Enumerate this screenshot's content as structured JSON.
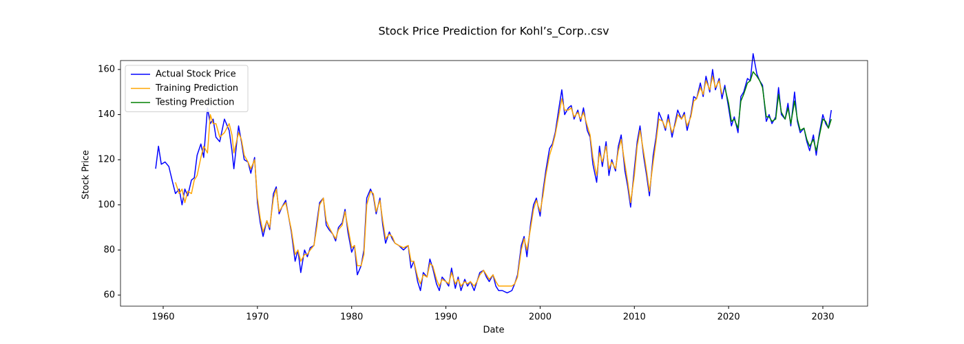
{
  "chart_data": {
    "type": "line",
    "title": "Stock Price Prediction for Kohl’s_Corp..csv",
    "x_label": "Date",
    "y_label": "Stock Price",
    "xlim": [
      1955.47,
      2034.75
    ],
    "xticks": [
      1960,
      1970,
      1980,
      1990,
      2000,
      2010,
      2020,
      2030
    ],
    "ylim": [
      55.1,
      163.96
    ],
    "yticks": [
      60,
      80,
      100,
      120,
      140,
      160
    ],
    "legend": "upper left",
    "series": [
      {
        "name": "Actual Stock Price",
        "color": "#0000ff",
        "x": [
          1959.2,
          1959.5,
          1959.8,
          1960.2,
          1960.6,
          1961,
          1961.3,
          1961.7,
          1962,
          1962.3,
          1962.6,
          1963,
          1963.3,
          1963.6,
          1964,
          1964.3,
          1964.7,
          1965,
          1965.3,
          1965.6,
          1966,
          1966.5,
          1967,
          1967.3,
          1967.5,
          1968,
          1968.3,
          1968.6,
          1969,
          1969.3,
          1969.7,
          1970,
          1970.3,
          1970.6,
          1971,
          1971.3,
          1971.7,
          1972,
          1972.3,
          1972.6,
          1973,
          1973.3,
          1973.6,
          1974,
          1974.3,
          1974.6,
          1975,
          1975.3,
          1975.6,
          1976,
          1976.3,
          1976.6,
          1977,
          1977.3,
          1977.6,
          1978,
          1978.3,
          1978.6,
          1979,
          1979.3,
          1979.6,
          1980,
          1980.3,
          1980.6,
          1981,
          1981.3,
          1981.6,
          1982,
          1982.3,
          1982.6,
          1983,
          1983.3,
          1983.6,
          1984,
          1984.3,
          1984.6,
          1985,
          1985.5,
          1986,
          1986.3,
          1986.6,
          1987,
          1987.3,
          1987.6,
          1988,
          1988.3,
          1988.6,
          1989,
          1989.3,
          1989.6,
          1990,
          1990.3,
          1990.6,
          1991,
          1991.3,
          1991.6,
          1992,
          1992.3,
          1992.6,
          1993,
          1993.3,
          1993.6,
          1994,
          1994.3,
          1994.6,
          1995,
          1995.3,
          1995.6,
          1996,
          1996.5,
          1997,
          1997.3,
          1997.6,
          1998,
          1998.3,
          1998.6,
          1999,
          1999.3,
          1999.6,
          2000,
          2000.3,
          2000.6,
          2001,
          2001.3,
          2001.6,
          2002,
          2002.3,
          2002.6,
          2003,
          2003.3,
          2003.6,
          2004,
          2004.3,
          2004.6,
          2005,
          2005.3,
          2005.6,
          2006,
          2006.3,
          2006.6,
          2007,
          2007.3,
          2007.6,
          2008,
          2008.3,
          2008.6,
          2009,
          2009.3,
          2009.6,
          2010,
          2010.3,
          2010.6,
          2011,
          2011.3,
          2011.6,
          2012,
          2012.3,
          2012.6,
          2013,
          2013.3,
          2013.6,
          2014,
          2014.3,
          2014.6,
          2015,
          2015.3,
          2015.6,
          2016,
          2016.3,
          2016.6,
          2017,
          2017.3,
          2017.6,
          2018,
          2018.3,
          2018.6,
          2019,
          2019.3,
          2019.6,
          2020,
          2020.3,
          2020.6,
          2021,
          2021.3,
          2021.6,
          2022,
          2022.3,
          2022.6,
          2023,
          2023.3,
          2023.6,
          2024,
          2024.3,
          2024.6,
          2025,
          2025.3,
          2025.6,
          2026,
          2026.3,
          2026.6,
          2027,
          2027.3,
          2027.6,
          2028,
          2028.3,
          2028.6,
          2029,
          2029.3,
          2029.6,
          2030,
          2030.3,
          2030.6,
          2030.9
        ],
        "values": [
          116,
          126,
          118,
          119,
          117,
          110,
          105,
          107,
          100,
          107,
          104,
          111,
          112,
          122,
          127,
          121,
          143,
          136,
          138,
          130,
          128,
          138,
          133,
          124,
          116,
          135,
          128,
          120,
          119,
          114,
          121,
          101,
          92,
          86,
          93,
          89,
          105,
          108,
          96,
          99,
          102,
          95,
          88,
          75,
          80,
          70,
          80,
          77,
          81,
          82,
          92,
          101,
          103,
          91,
          89,
          87,
          84,
          90,
          92,
          98,
          88,
          79,
          82,
          69,
          73,
          80,
          103,
          107,
          104,
          96,
          103,
          91,
          83,
          88,
          85,
          83,
          82,
          80,
          82,
          72,
          75,
          66,
          62,
          70,
          68,
          76,
          72,
          65,
          62,
          68,
          66,
          64,
          72,
          63,
          68,
          62,
          67,
          64,
          66,
          62,
          66,
          70,
          71,
          68,
          66,
          69,
          64,
          62,
          62,
          61,
          62,
          65,
          69,
          82,
          86,
          77,
          92,
          100,
          103,
          95,
          106,
          115,
          125,
          127,
          132,
          143,
          151,
          140,
          143,
          144,
          138,
          142,
          137,
          143,
          133,
          130,
          118,
          110,
          126,
          117,
          128,
          113,
          120,
          115,
          126,
          131,
          115,
          108,
          99,
          116,
          128,
          135,
          121,
          113,
          104,
          122,
          130,
          141,
          137,
          133,
          140,
          130,
          136,
          142,
          138,
          141,
          133,
          140,
          148,
          147,
          154,
          148,
          157,
          150,
          160,
          151,
          156,
          147,
          153,
          143,
          135,
          139,
          132,
          148,
          150,
          156,
          155,
          167,
          158,
          155,
          153,
          137,
          140,
          136,
          139,
          152,
          140,
          138,
          145,
          135,
          150,
          137,
          132,
          134,
          128,
          124,
          131,
          122,
          131,
          140,
          136,
          134,
          142
        ]
      },
      {
        "name": "Training Prediction",
        "color": "#ffa500",
        "x": [
          1961.3,
          1961.7,
          1962,
          1962.3,
          1962.6,
          1963,
          1963.3,
          1963.6,
          1964,
          1964.3,
          1964.7,
          1965,
          1965.3,
          1965.6,
          1966,
          1966.5,
          1967,
          1967.3,
          1967.5,
          1968,
          1968.3,
          1968.6,
          1969,
          1969.3,
          1969.7,
          1970,
          1970.3,
          1970.6,
          1971,
          1971.3,
          1971.7,
          1972,
          1972.3,
          1972.6,
          1973,
          1973.3,
          1973.6,
          1974,
          1974.3,
          1974.6,
          1975,
          1975.3,
          1975.6,
          1976,
          1976.3,
          1976.6,
          1977,
          1977.3,
          1977.6,
          1978,
          1978.3,
          1978.6,
          1979,
          1979.3,
          1979.6,
          1980,
          1980.3,
          1980.6,
          1981,
          1981.3,
          1981.6,
          1982,
          1982.3,
          1982.6,
          1983,
          1983.3,
          1983.6,
          1984,
          1984.3,
          1984.6,
          1985,
          1985.5,
          1986,
          1986.3,
          1986.6,
          1987,
          1987.3,
          1987.6,
          1988,
          1988.3,
          1988.6,
          1989,
          1989.3,
          1989.6,
          1990,
          1990.3,
          1990.6,
          1991,
          1991.3,
          1991.6,
          1992,
          1992.3,
          1992.6,
          1993,
          1993.3,
          1993.6,
          1994,
          1994.3,
          1994.6,
          1995,
          1995.3,
          1995.6,
          1996,
          1996.5,
          1997,
          1997.3,
          1997.6,
          1998,
          1998.3,
          1998.6,
          1999,
          1999.3,
          1999.6,
          2000,
          2000.3,
          2000.6,
          2001,
          2001.3,
          2001.6,
          2002,
          2002.3,
          2002.6,
          2003,
          2003.3,
          2003.6,
          2004,
          2004.3,
          2004.6,
          2005,
          2005.3,
          2005.6,
          2006,
          2006.3,
          2006.6,
          2007,
          2007.3,
          2007.6,
          2008,
          2008.3,
          2008.6,
          2009,
          2009.3,
          2009.6,
          2010,
          2010.3,
          2010.6,
          2011,
          2011.3,
          2011.6,
          2012,
          2012.3,
          2012.6,
          2013,
          2013.3,
          2013.6,
          2014,
          2014.3,
          2014.6,
          2015,
          2015.3,
          2015.6,
          2016,
          2016.3,
          2016.6,
          2017,
          2017.3,
          2017.6,
          2018,
          2018.3,
          2018.6,
          2019,
          2019.3
        ],
        "values": [
          110,
          105,
          107,
          101,
          106,
          105,
          111,
          113,
          121,
          126,
          123,
          140,
          136,
          136,
          130,
          132,
          136,
          131,
          123,
          132,
          129,
          122,
          119,
          116,
          120,
          103,
          94,
          88,
          93,
          90,
          103,
          107,
          97,
          99,
          101,
          95,
          89,
          78,
          80,
          75,
          78,
          78,
          80,
          82,
          90,
          100,
          103,
          93,
          90,
          87,
          85,
          89,
          91,
          97,
          90,
          81,
          82,
          73,
          73,
          78,
          100,
          106,
          105,
          97,
          102,
          93,
          85,
          87,
          86,
          83,
          82,
          81,
          82,
          75,
          75,
          68,
          65,
          69,
          68,
          74,
          73,
          67,
          64,
          67,
          66,
          65,
          70,
          65,
          67,
          64,
          66,
          65,
          66,
          64,
          66,
          69,
          71,
          69,
          67,
          69,
          66,
          64,
          64,
          64,
          64,
          65,
          68,
          80,
          85,
          80,
          90,
          98,
          102,
          97,
          104,
          113,
          122,
          126,
          131,
          140,
          147,
          142,
          142,
          143,
          139,
          141,
          138,
          141,
          135,
          131,
          121,
          113,
          123,
          119,
          126,
          116,
          119,
          116,
          124,
          129,
          118,
          110,
          101,
          113,
          126,
          133,
          123,
          115,
          106,
          119,
          128,
          138,
          137,
          134,
          138,
          132,
          135,
          140,
          138,
          140,
          135,
          139,
          146,
          147,
          152,
          149,
          155,
          151,
          157,
          152,
          155,
          149
        ]
      },
      {
        "name": "Testing Prediction",
        "color": "#008000",
        "x": [
          2019.6,
          2020,
          2020.3,
          2020.6,
          2021,
          2021.3,
          2021.6,
          2022,
          2022.3,
          2022.6,
          2023,
          2023.3,
          2023.6,
          2024,
          2024.3,
          2024.6,
          2025,
          2025.3,
          2025.6,
          2026,
          2026.3,
          2026.6,
          2027,
          2027.3,
          2027.6,
          2028,
          2028.3,
          2028.6,
          2029,
          2029.3,
          2029.6,
          2030,
          2030.3,
          2030.6,
          2030.9
        ],
        "values": [
          152,
          145,
          137,
          138,
          134,
          146,
          149,
          154,
          155,
          159,
          157,
          155,
          152,
          139,
          139,
          137,
          138,
          149,
          141,
          138,
          143,
          136,
          146,
          138,
          133,
          134,
          129,
          126,
          129,
          124,
          130,
          138,
          137,
          134,
          138
        ]
      }
    ]
  }
}
